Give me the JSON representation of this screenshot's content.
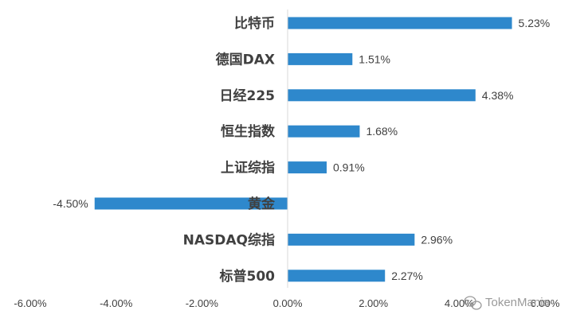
{
  "chart_data": {
    "type": "bar",
    "orientation": "horizontal",
    "categories": [
      "比特币",
      "德国DAX",
      "日经225",
      "恒生指数",
      "上证综指",
      "黄金",
      "NASDAQ综指",
      "标普500"
    ],
    "values": [
      5.23,
      1.51,
      4.38,
      1.68,
      0.91,
      -4.5,
      2.96,
      2.27
    ],
    "value_labels": [
      "5.23%",
      "1.51%",
      "4.38%",
      "1.68%",
      "0.91%",
      "-4.50%",
      "2.96%",
      "2.27%"
    ],
    "xlim": [
      -6,
      6
    ],
    "xticks": [
      -6,
      -4,
      -2,
      0,
      2,
      4,
      6
    ],
    "xtick_labels": [
      "-6.00%",
      "-4.00%",
      "-2.00%",
      "0.00%",
      "2.00%",
      "4.00%",
      "6.00%"
    ],
    "bar_color": "#2e88cc",
    "grid": false,
    "legend": "none"
  },
  "watermark": {
    "text": "TokenMania",
    "icon": "wechat-icon"
  }
}
